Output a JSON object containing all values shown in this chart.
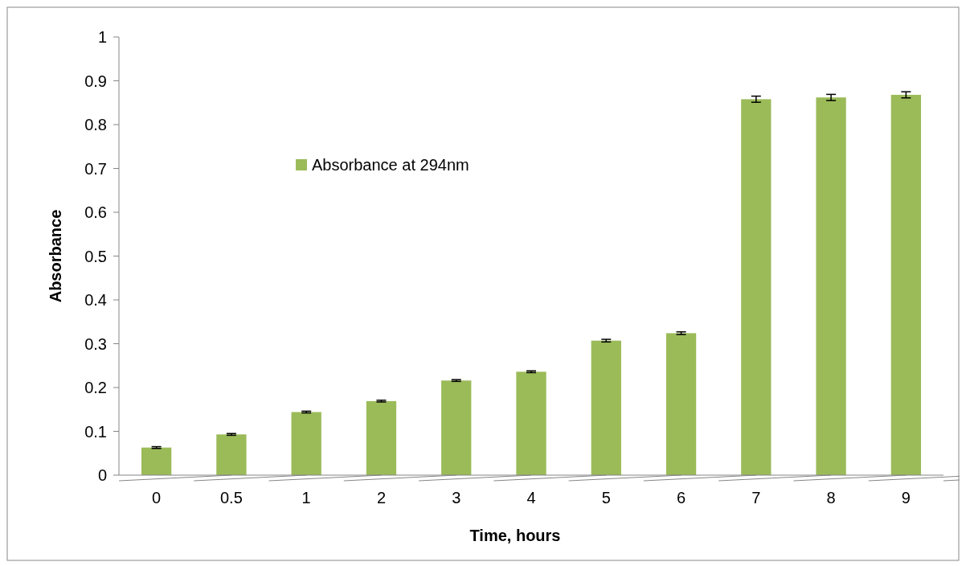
{
  "chart_data": {
    "type": "bar",
    "xlabel": "Time, hours",
    "ylabel": "Absorbance",
    "categories": [
      "0",
      "0.5",
      "1",
      "2",
      "3",
      "4",
      "5",
      "6",
      "7",
      "8",
      "9"
    ],
    "series": [
      {
        "name": "Absorbance at 294nm",
        "color": "#9bbb59",
        "values": [
          0.063,
          0.093,
          0.144,
          0.169,
          0.216,
          0.236,
          0.307,
          0.324,
          0.858,
          0.862,
          0.868
        ],
        "errors": [
          0.002,
          0.002,
          0.002,
          0.002,
          0.002,
          0.002,
          0.003,
          0.003,
          0.007,
          0.007,
          0.007
        ]
      }
    ],
    "ylim": [
      0,
      1
    ],
    "yticks": [
      0,
      0.1,
      0.2,
      0.3,
      0.4,
      0.5,
      0.6,
      0.7,
      0.8,
      0.9,
      1
    ],
    "grid": false,
    "legend": "top left"
  }
}
